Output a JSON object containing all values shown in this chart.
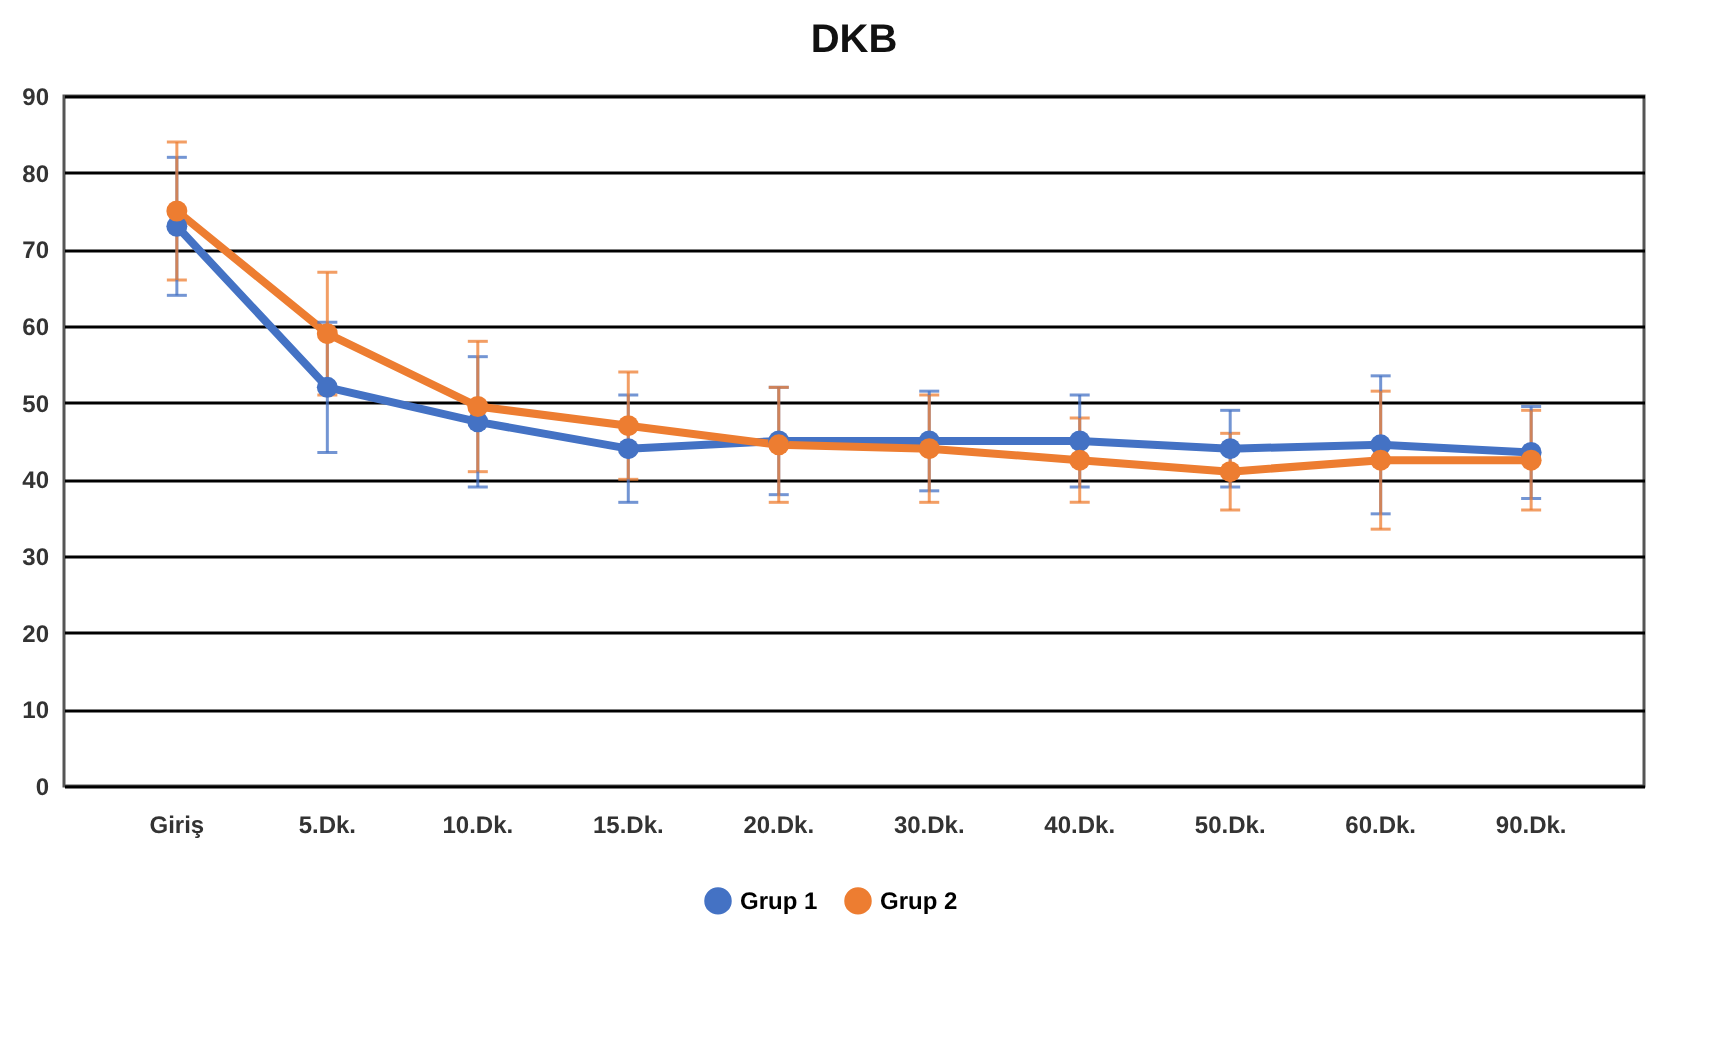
{
  "chart_data": {
    "type": "line",
    "title": "DKB",
    "categories": [
      "Giriş",
      "5.Dk.",
      "10.Dk.",
      "15.Dk.",
      "20.Dk.",
      "30.Dk.",
      "40.Dk.",
      "50.Dk.",
      "60.Dk.",
      "90.Dk."
    ],
    "series": [
      {
        "name": "Grup 1",
        "color": "#4472c4",
        "values": [
          73,
          52,
          47.5,
          44,
          45,
          45,
          45,
          44,
          44.5,
          43.5
        ],
        "errors": [
          9,
          8.5,
          8.5,
          7,
          7,
          6.5,
          6,
          5,
          9,
          6
        ]
      },
      {
        "name": "Grup 2",
        "color": "#ed7d31",
        "values": [
          75,
          59,
          49.5,
          47,
          44.5,
          44,
          42.5,
          41,
          42.5,
          42.5
        ],
        "errors": [
          9,
          8,
          8.5,
          7,
          7.5,
          7,
          5.5,
          5,
          9,
          6.5
        ]
      }
    ],
    "ylim": [
      0,
      90
    ],
    "yticks": [
      0,
      10,
      20,
      30,
      40,
      50,
      60,
      70,
      80,
      90
    ],
    "grid": "y",
    "legend": "bottom",
    "marker": "circle",
    "line_style": "solid"
  }
}
